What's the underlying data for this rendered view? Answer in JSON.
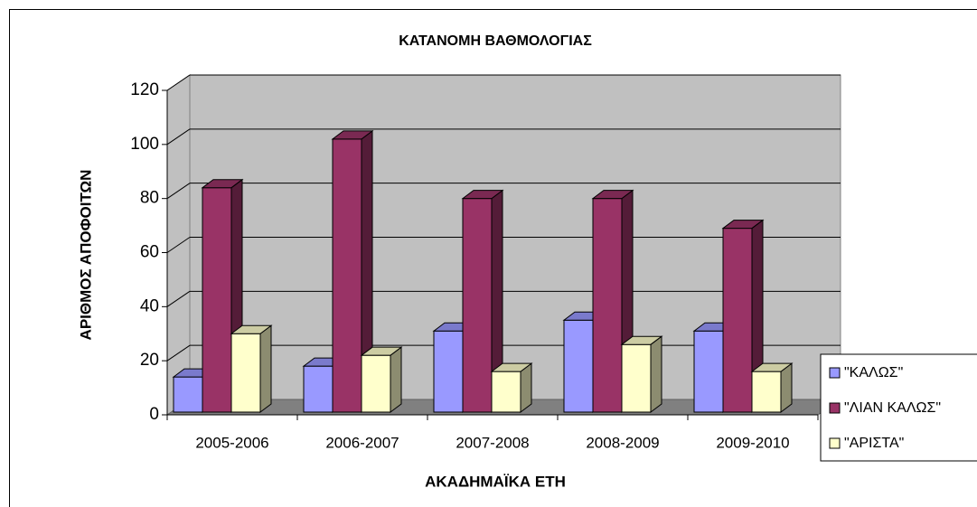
{
  "chart_data": {
    "type": "bar3d",
    "title": "ΚΑΤΑΝΟΜΗ ΒΑΘΜΟΛΟΓΙΑΣ",
    "x_label": "ΑΚΑΔΗΜΑΪΚΑ  ΕΤΗ",
    "y_label": "ΑΡΙΘΜΟΣ ΑΠΟΦΟΙΤΩΝ",
    "categories": [
      "2005-2006",
      "2006-2007",
      "2007-2008",
      "2008-2009",
      "2009-2010"
    ],
    "series": [
      {
        "name": "\"ΚΑΛΩΣ\"",
        "color": "#9999ff",
        "values": [
          13,
          17,
          30,
          34,
          30
        ]
      },
      {
        "name": "\"ΛΙΑΝ ΚΑΛΩΣ\"",
        "color": "#993366",
        "values": [
          83,
          101,
          79,
          79,
          68
        ]
      },
      {
        "name": "\"ΑΡΙΣΤΑ\"",
        "color": "#ffffcc",
        "values": [
          29,
          21,
          15,
          25,
          15
        ]
      }
    ],
    "ylim": [
      0,
      120
    ],
    "yticks": [
      0,
      20,
      40,
      60,
      80,
      100,
      120
    ],
    "grid": true,
    "legend": "right"
  }
}
